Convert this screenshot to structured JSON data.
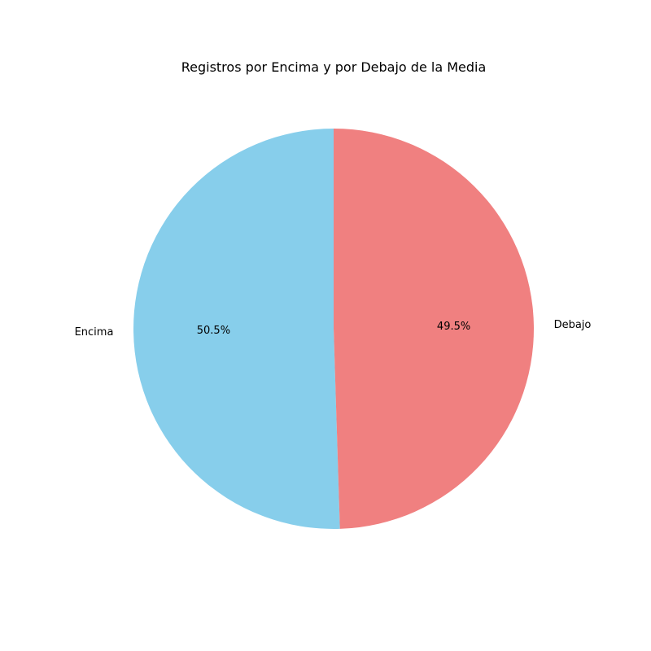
{
  "chart_data": {
    "type": "pie",
    "title": "Registros por Encima y por Debajo de la Media",
    "start_angle_deg": 90,
    "direction": "counterclockwise",
    "slices": [
      {
        "label": "Encima",
        "value": 50.5,
        "pct_text": "50.5%",
        "color": "#87CEEB"
      },
      {
        "label": "Debajo",
        "value": 49.5,
        "pct_text": "49.5%",
        "color": "#F08080"
      }
    ]
  }
}
